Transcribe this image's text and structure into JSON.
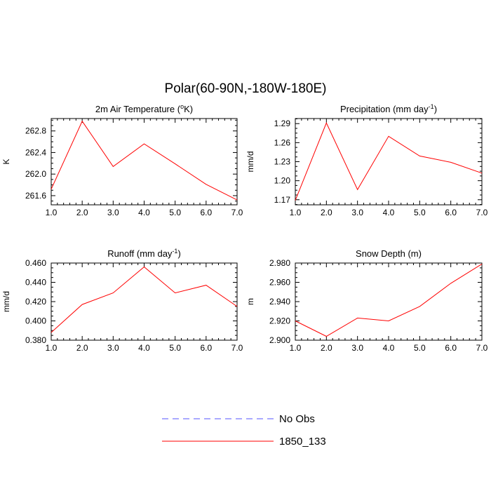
{
  "title": "Polar(60-90N,-180W-180E)",
  "legend": [
    {
      "label": "No Obs",
      "color": "#5555ff",
      "style": "dashed"
    },
    {
      "label": "1850_133",
      "color": "#ff0000",
      "style": "solid"
    }
  ],
  "chart_data": [
    {
      "type": "line",
      "title": "2m Air Temperature (°K)",
      "title_main": "2m Air Temperature (",
      "title_sup": "o",
      "title_end": "K)",
      "ylabel": "K",
      "xlim": [
        1.0,
        7.0
      ],
      "ylim": [
        261.43,
        263.03
      ],
      "yticks": [
        261.6,
        262.0,
        262.4,
        262.8
      ],
      "ytick_labels": [
        "261.6",
        "262.0",
        "262.4",
        "262.8"
      ],
      "xticks": [
        1,
        2,
        3,
        4,
        5,
        6,
        7
      ],
      "xtick_labels": [
        "1.0",
        "2.0",
        "3.0",
        "4.0",
        "5.0",
        "6.0",
        "7.0"
      ],
      "series": [
        {
          "name": "1850_133",
          "color": "#ff0000",
          "x": [
            1,
            2,
            3,
            4,
            5,
            6,
            7
          ],
          "y": [
            261.72,
            262.98,
            262.14,
            262.56,
            262.19,
            261.81,
            261.52
          ]
        }
      ]
    },
    {
      "type": "line",
      "title": "Precipitation (mm day-1)",
      "title_main": "Precipitation (mm day",
      "title_sup": "-1",
      "title_end": ")",
      "ylabel": "mm/d",
      "xlim": [
        1.0,
        7.0
      ],
      "ylim": [
        1.162,
        1.298
      ],
      "yticks": [
        1.17,
        1.2,
        1.23,
        1.26,
        1.29
      ],
      "ytick_labels": [
        "1.17",
        "1.20",
        "1.23",
        "1.26",
        "1.29"
      ],
      "xticks": [
        1,
        2,
        3,
        4,
        5,
        6,
        7
      ],
      "xtick_labels": [
        "1.0",
        "2.0",
        "3.0",
        "4.0",
        "5.0",
        "6.0",
        "7.0"
      ],
      "series": [
        {
          "name": "1850_133",
          "color": "#ff0000",
          "x": [
            1,
            2,
            3,
            4,
            5,
            6,
            7
          ],
          "y": [
            1.169,
            1.291,
            1.186,
            1.27,
            1.239,
            1.229,
            1.212
          ]
        }
      ]
    },
    {
      "type": "line",
      "title": "Runoff (mm day-1)",
      "title_main": "Runoff (mm day",
      "title_sup": "-1",
      "title_end": ")",
      "ylabel": "mm/d",
      "xlim": [
        1.0,
        7.0
      ],
      "ylim": [
        0.38,
        0.46
      ],
      "yticks": [
        0.38,
        0.4,
        0.42,
        0.44,
        0.46
      ],
      "ytick_labels": [
        "0.380",
        "0.400",
        "0.420",
        "0.440",
        "0.460"
      ],
      "xticks": [
        1,
        2,
        3,
        4,
        5,
        6,
        7
      ],
      "xtick_labels": [
        "1.0",
        "2.0",
        "3.0",
        "4.0",
        "5.0",
        "6.0",
        "7.0"
      ],
      "series": [
        {
          "name": "1850_133",
          "color": "#ff0000",
          "x": [
            1,
            2,
            3,
            4,
            5,
            6,
            7
          ],
          "y": [
            0.388,
            0.417,
            0.429,
            0.456,
            0.429,
            0.437,
            0.415
          ]
        }
      ]
    },
    {
      "type": "line",
      "title": "Snow Depth (m)",
      "title_main": "Snow Depth (m)",
      "title_sup": "",
      "title_end": "",
      "ylabel": "m",
      "xlim": [
        1.0,
        7.0
      ],
      "ylim": [
        2.9,
        2.98
      ],
      "yticks": [
        2.9,
        2.92,
        2.94,
        2.96,
        2.98
      ],
      "ytick_labels": [
        "2.900",
        "2.920",
        "2.940",
        "2.960",
        "2.980"
      ],
      "xticks": [
        1,
        2,
        3,
        4,
        5,
        6,
        7
      ],
      "xtick_labels": [
        "1.0",
        "2.0",
        "3.0",
        "4.0",
        "5.0",
        "6.0",
        "7.0"
      ],
      "series": [
        {
          "name": "1850_133",
          "color": "#ff0000",
          "x": [
            1,
            2,
            3,
            4,
            5,
            6,
            7
          ],
          "y": [
            2.92,
            2.904,
            2.923,
            2.92,
            2.935,
            2.959,
            2.979
          ]
        }
      ]
    }
  ]
}
